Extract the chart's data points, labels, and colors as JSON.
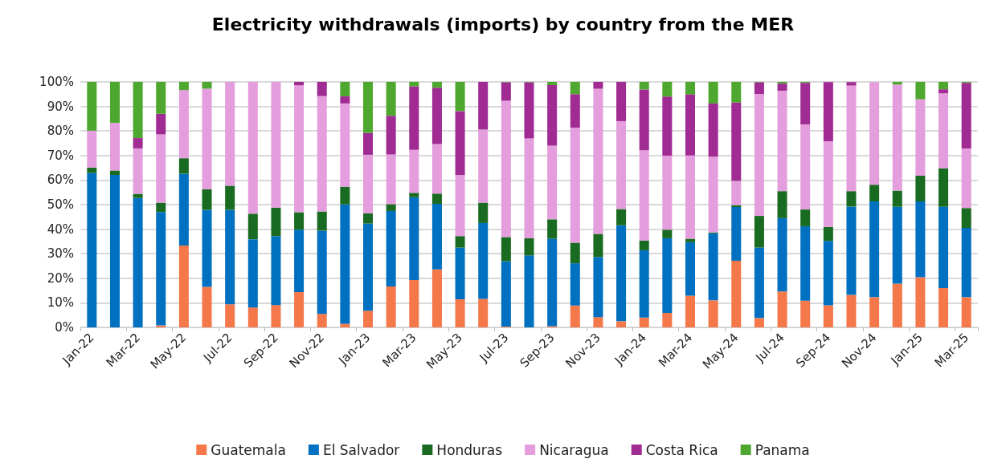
{
  "chart_data": {
    "type": "bar",
    "title": "Electricity withdrawals (imports) by country from the MER",
    "stacked": true,
    "grid": "y",
    "legend": "bottom",
    "categories": [
      "Jan-22",
      null,
      "Mar-22",
      null,
      "May-22",
      null,
      "Jul-22",
      null,
      "Sep-22",
      null,
      "Nov-22",
      null,
      "Jan-23",
      null,
      "Mar-23",
      null,
      "May-23",
      null,
      "Jul-23",
      null,
      "Sep-23",
      null,
      "Nov-23",
      null,
      "Jan-24",
      null,
      "Mar-24",
      null,
      "May-24",
      null,
      "Jul-24",
      null,
      "Sep-24",
      null,
      "Nov-24",
      null,
      "Jan-25",
      null,
      "Mar-25"
    ],
    "ylim": [
      0,
      100
    ],
    "yticks": [
      {
        "value": 0,
        "label": "0%"
      },
      {
        "value": 10,
        "label": "10%"
      },
      {
        "value": 20,
        "label": "20%"
      },
      {
        "value": 30,
        "label": "30%"
      },
      {
        "value": 40,
        "label": "40%"
      },
      {
        "value": 50,
        "label": "50%"
      },
      {
        "value": 60,
        "label": "60%"
      },
      {
        "value": 70,
        "label": "70%"
      },
      {
        "value": 80,
        "label": "80%"
      },
      {
        "value": 90,
        "label": "90%"
      },
      {
        "value": 100,
        "label": "100%"
      }
    ],
    "series": [
      {
        "name": "Guatemala",
        "color": "#f4784a",
        "values": [
          0,
          0,
          0,
          0.8,
          33.3,
          16.5,
          9.4,
          8.1,
          9.1,
          14.4,
          5.5,
          1.5,
          6.8,
          16.7,
          19.3,
          23.6,
          11.4,
          11.6,
          0.3,
          0,
          0.5,
          8.9,
          4.2,
          2.5,
          4.0,
          5.9,
          12.9,
          11.0,
          27.1,
          3.8,
          14.6,
          10.9,
          9.0,
          13.2,
          12.3,
          17.8,
          20.4,
          16.0,
          12.3
        ]
      },
      {
        "name": "El Salvador",
        "color": "#0070c0",
        "values": [
          62.9,
          62.1,
          52.7,
          46.2,
          29.3,
          31.4,
          38.5,
          27.8,
          28.1,
          25.4,
          33.9,
          48.6,
          35.5,
          30.7,
          33.7,
          26.7,
          21.1,
          30.9,
          26.6,
          29.3,
          35.6,
          17.2,
          24.5,
          39.1,
          27.4,
          30.4,
          21.8,
          27.3,
          21.9,
          28.7,
          29.9,
          30.3,
          26.2,
          36.0,
          39.0,
          31.3,
          30.9,
          33.1,
          28.2
        ]
      },
      {
        "name": "Honduras",
        "color": "#1a6b22",
        "values": [
          2.2,
          1.8,
          1.7,
          3.8,
          6.3,
          8.4,
          9.8,
          10.4,
          11.6,
          7.1,
          7.8,
          7.2,
          4.1,
          2.8,
          1.8,
          4.2,
          4.7,
          8.3,
          9.9,
          7.0,
          7.9,
          8.4,
          9.4,
          6.6,
          4.0,
          3.5,
          1.4,
          0.4,
          0.8,
          12.9,
          11.0,
          6.8,
          5.7,
          6.3,
          6.8,
          6.6,
          10.5,
          15.7,
          8.1
        ]
      },
      {
        "name": "Nicaragua",
        "color": "#e59edd",
        "values": [
          15.0,
          19.4,
          18.5,
          27.8,
          27.8,
          40.9,
          42.3,
          53.7,
          51.2,
          51.7,
          47.0,
          33.9,
          23.9,
          20.2,
          17.5,
          20.2,
          24.9,
          29.8,
          55.5,
          40.7,
          30.0,
          46.8,
          59.1,
          35.8,
          36.7,
          30.1,
          33.9,
          30.8,
          9.8,
          49.7,
          40.9,
          34.7,
          34.9,
          43.0,
          41.8,
          43.2,
          31.1,
          30.5,
          24.3
        ]
      },
      {
        "name": "Costa Rica",
        "color": "#a02b93",
        "values": [
          0,
          0,
          4.2,
          8.4,
          0,
          0,
          0,
          0,
          0,
          1.4,
          5.8,
          2.9,
          8.9,
          15.8,
          25.9,
          22.9,
          26.0,
          19.4,
          7.5,
          22.8,
          24.7,
          13.7,
          2.8,
          16.0,
          24.8,
          24.1,
          24.9,
          21.7,
          32.0,
          4.7,
          2.9,
          16.9,
          24.1,
          1.4,
          null,
          0,
          0,
          1.7,
          26.7
        ]
      },
      {
        "name": "Panama",
        "color": "#4ea72e",
        "values": [
          19.9,
          16.7,
          22.9,
          13.0,
          3.3,
          2.8,
          0,
          0,
          0,
          0,
          0,
          5.9,
          20.8,
          13.8,
          1.8,
          2.4,
          11.9,
          0,
          0.2,
          0.2,
          1.3,
          5.0,
          0,
          0,
          3.1,
          6.0,
          5.1,
          8.8,
          8.4,
          0.2,
          0.7,
          0.4,
          null,
          null,
          0,
          1.1,
          7.1,
          3.0,
          0.4
        ]
      }
    ]
  }
}
